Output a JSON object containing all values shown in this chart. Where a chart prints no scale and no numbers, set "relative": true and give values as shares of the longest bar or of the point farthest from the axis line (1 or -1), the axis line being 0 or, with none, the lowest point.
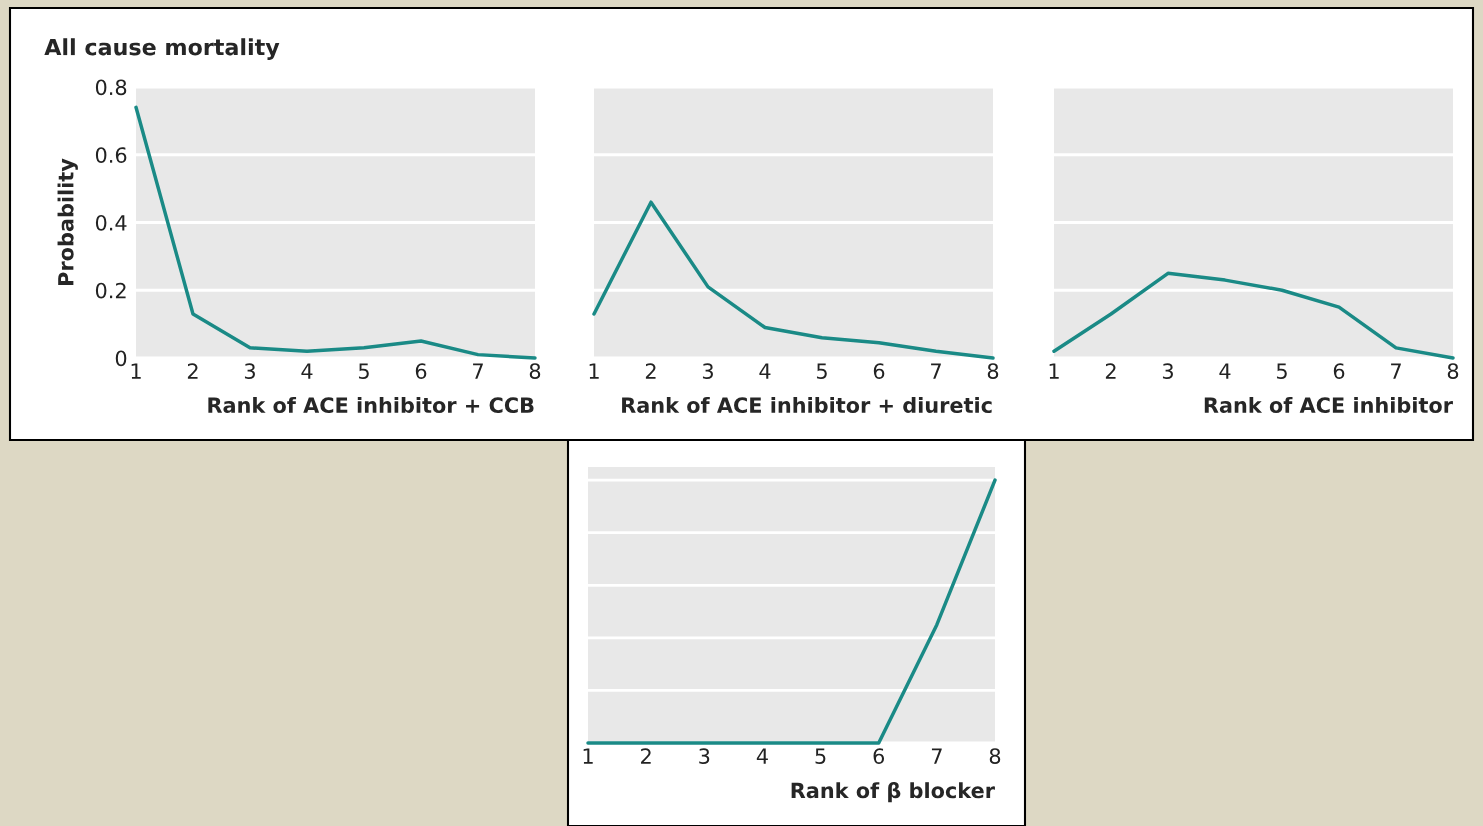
{
  "chart_data": [
    {
      "type": "line",
      "title": "All cause mortality",
      "ylabel": "Probability",
      "xlabel": "Rank of ACE inhibitor + CCB",
      "x": [
        1,
        2,
        3,
        4,
        5,
        6,
        7,
        8
      ],
      "series": [
        {
          "color": "#1a8a86",
          "values": [
            0.74,
            0.13,
            0.03,
            0.02,
            0.03,
            0.05,
            0.01,
            0
          ]
        }
      ],
      "xlim": [
        1,
        8
      ],
      "xticks": [
        1,
        2,
        3,
        4,
        5,
        6,
        7,
        8
      ],
      "ylim": [
        0,
        0.8
      ],
      "yticks": [
        0,
        0.2,
        0.4,
        0.6,
        0.8
      ],
      "grid": "y"
    },
    {
      "type": "line",
      "xlabel": "Rank of ACE inhibitor + diuretic",
      "x": [
        1,
        2,
        3,
        4,
        5,
        6,
        7,
        8
      ],
      "series": [
        {
          "color": "#1a8a86",
          "values": [
            0.13,
            0.46,
            0.21,
            0.09,
            0.06,
            0.045,
            0.02,
            0
          ]
        }
      ],
      "xlim": [
        1,
        8
      ],
      "xticks": [
        1,
        2,
        3,
        4,
        5,
        6,
        7,
        8
      ],
      "ylim": [
        0,
        0.8
      ],
      "yticks": [
        0,
        0.2,
        0.4,
        0.6,
        0.8
      ],
      "grid": "y",
      "tick_labels": "x"
    },
    {
      "type": "line",
      "xlabel": "Rank of ACE inhibitor",
      "x": [
        1,
        2,
        3,
        4,
        5,
        6,
        7,
        8
      ],
      "series": [
        {
          "color": "#1a8a86",
          "values": [
            0.02,
            0.13,
            0.25,
            0.23,
            0.2,
            0.15,
            0.03,
            0
          ]
        }
      ],
      "xlim": [
        1,
        8
      ],
      "xticks": [
        1,
        2,
        3,
        4,
        5,
        6,
        7,
        8
      ],
      "ylim": [
        0,
        0.8
      ],
      "yticks": [
        0,
        0.2,
        0.4,
        0.6,
        0.8
      ],
      "grid": "y",
      "tick_labels": "x"
    },
    {
      "type": "line",
      "xlabel": "Rank of β blocker",
      "x": [
        1,
        2,
        3,
        4,
        5,
        6,
        7,
        8
      ],
      "series": [
        {
          "color": "#1a8a86",
          "values": [
            0,
            0,
            0,
            0,
            0,
            0,
            0.45,
            1
          ]
        }
      ],
      "relative": true,
      "xlim": [
        1,
        8
      ],
      "xticks": [
        1,
        2,
        3,
        4,
        5,
        6,
        7,
        8
      ],
      "grid": "y",
      "tick_labels": "x"
    }
  ]
}
